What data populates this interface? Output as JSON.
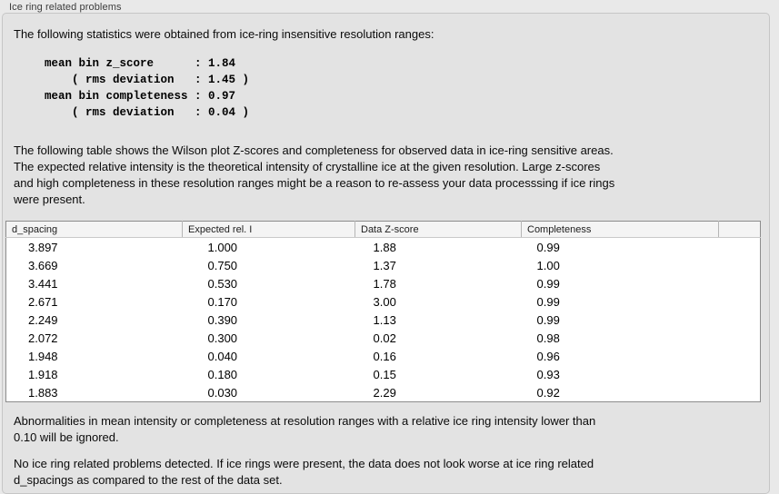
{
  "panel_title": "Ice ring related problems",
  "intro": "The following statistics were obtained from ice-ring insensitive resolution ranges:",
  "stats_block": "mean bin z_score      : 1.84\n    ( rms deviation   : 1.45 )\nmean bin completeness : 0.97\n    ( rms deviation   : 0.04 )",
  "description": "The following table shows the Wilson plot Z-scores and completeness for observed data in ice-ring sensitive areas.\nThe expected relative intensity is the theoretical intensity of crystalline ice at the given resolution. Large z-scores\nand high completeness in these resolution ranges might be a reason to re-assess your data processsing if ice rings\nwere present.",
  "table": {
    "columns": [
      "d_spacing",
      "Expected rel. I",
      "Data Z-score",
      "Completeness"
    ],
    "rows": [
      [
        "3.897",
        "1.000",
        "1.88",
        "0.99"
      ],
      [
        "3.669",
        "0.750",
        "1.37",
        "1.00"
      ],
      [
        "3.441",
        "0.530",
        "1.78",
        "0.99"
      ],
      [
        "2.671",
        "0.170",
        "3.00",
        "0.99"
      ],
      [
        "2.249",
        "0.390",
        "1.13",
        "0.99"
      ],
      [
        "2.072",
        "0.300",
        "0.02",
        "0.98"
      ],
      [
        "1.948",
        "0.040",
        "0.16",
        "0.96"
      ],
      [
        "1.918",
        "0.180",
        "0.15",
        "0.93"
      ],
      [
        "1.883",
        "0.030",
        "2.29",
        "0.92"
      ]
    ]
  },
  "note": "Abnormalities in mean intensity or completeness at resolution ranges with a relative ice ring intensity lower than\n0.10 will be ignored.",
  "conclusion": "No ice ring related problems detected. If ice rings were present, the data does not look worse at ice ring related\nd_spacings as compared to the rest of the data set."
}
